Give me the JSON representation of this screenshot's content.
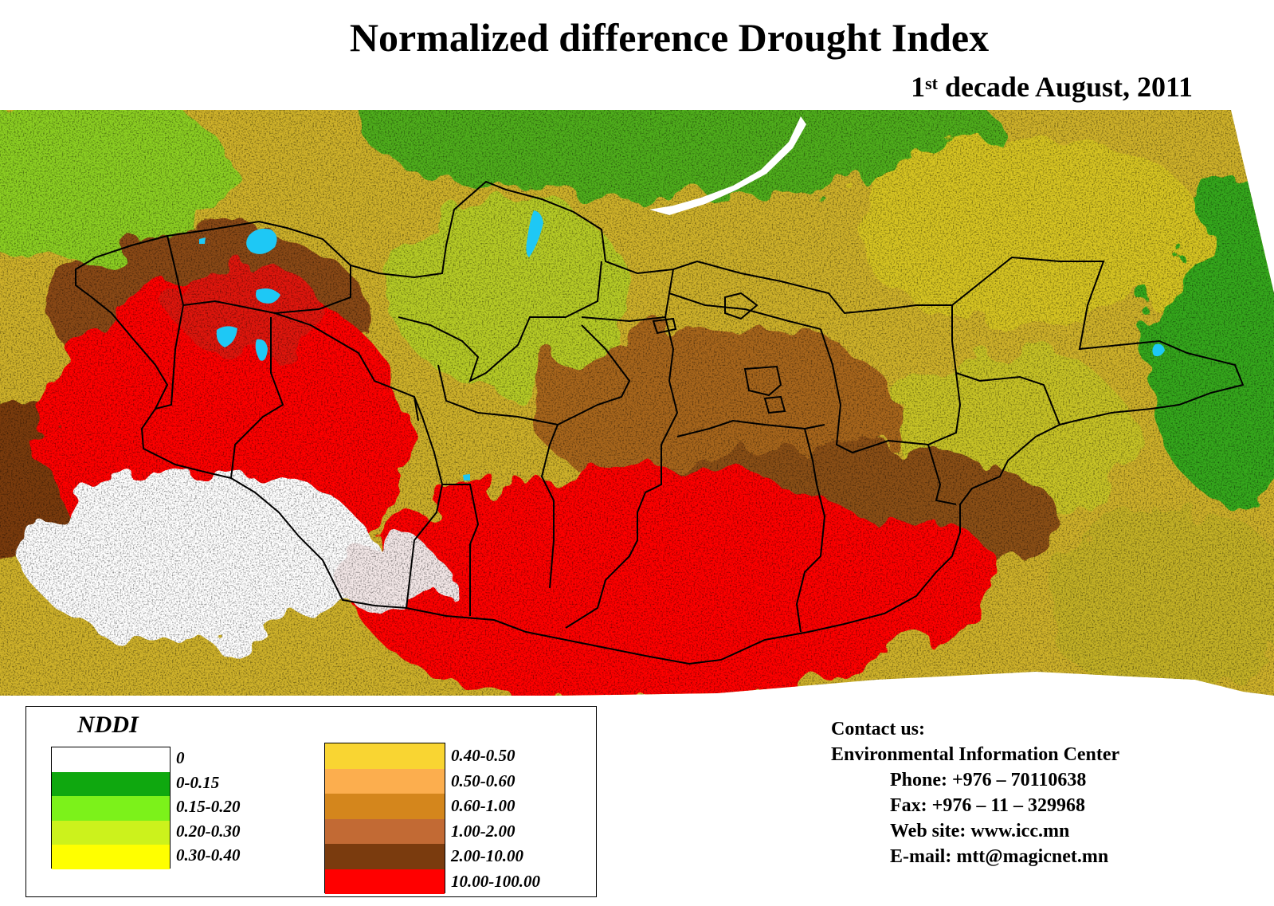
{
  "title": "Normalized difference Drought Index",
  "subtitle": {
    "ordinal_number": "1",
    "ordinal_suffix": "st",
    "rest": " decade August, 2011"
  },
  "legend": {
    "title": "NDDI",
    "classes": [
      {
        "label": "0",
        "color": "#ffffff"
      },
      {
        "label": "0-0.15",
        "color": "#0fa80f"
      },
      {
        "label": "0.15-0.20",
        "color": "#7cf21a"
      },
      {
        "label": "0.20-0.30",
        "color": "#ccf21c"
      },
      {
        "label": "0.30-0.40",
        "color": "#ffff00"
      },
      {
        "label": "0.40-0.50",
        "color": "#f9d532"
      },
      {
        "label": "0.50-0.60",
        "color": "#fcae4e"
      },
      {
        "label": "0.60-1.00",
        "color": "#d4861c"
      },
      {
        "label": "1.00-2.00",
        "color": "#c26a34"
      },
      {
        "label": "2.00-10.00",
        "color": "#7a3b0e"
      },
      {
        "label": "10.00-100.00",
        "color": "#ff0000"
      }
    ]
  },
  "contact": {
    "heading": "Contact us:",
    "org": "Environmental Information Center",
    "phone": "Phone: +976 – 70110638",
    "fax": "Fax: +976 – 11 – 329968",
    "website": "Web site: www.icc.mn",
    "email": "E-mail: mtt@magicnet.mn"
  },
  "map": {
    "lake_color": "#1ec8f5",
    "border_color": "#000000"
  }
}
